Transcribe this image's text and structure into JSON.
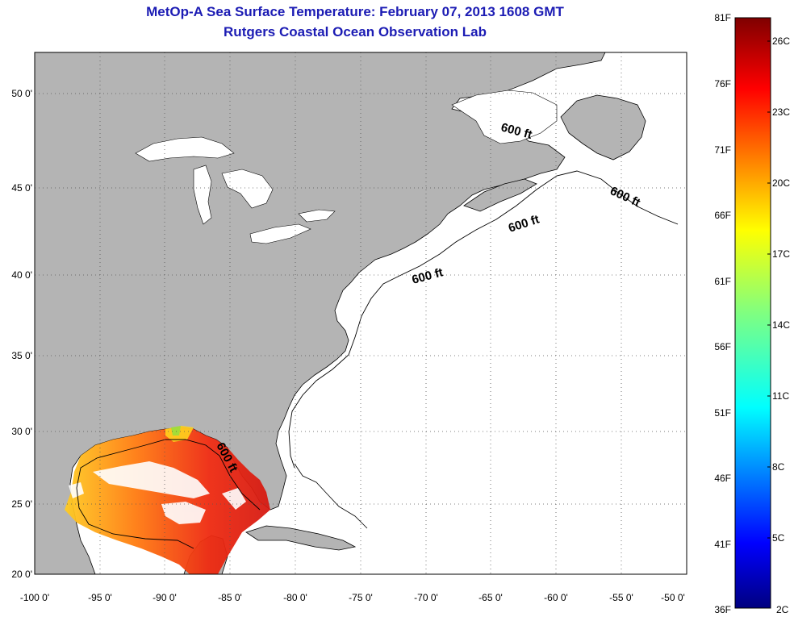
{
  "title": {
    "line1": "MetOp-A Sea Surface Temperature:  February 07, 2013 1608 GMT",
    "line2": "Rutgers Coastal Ocean Observation Lab"
  },
  "map": {
    "lon_range": [
      -100,
      -50
    ],
    "lat_range": [
      20,
      52
    ],
    "lon_ticks": [
      "-100 0'",
      "-95 0'",
      "-90 0'",
      "-85 0'",
      "-80 0'",
      "-75 0'",
      "-70 0'",
      "-65 0'",
      "-60 0'",
      "-55 0'",
      "-50 0'"
    ],
    "lat_ticks": [
      "20 0'",
      "25 0'",
      "30 0'",
      "35 0'",
      "40 0'",
      "45 0'",
      "50 0'"
    ],
    "grid": "dotted",
    "land_color": "#b4b4b4",
    "ocean_color": "#ffffff",
    "contour_labels": [
      "600 ft",
      "600 ft",
      "600 ft",
      "600 ft",
      "600 ft"
    ]
  },
  "colorbar": {
    "fahrenheit_labels": [
      "81F",
      "76F",
      "71F",
      "66F",
      "61F",
      "56F",
      "51F",
      "46F",
      "41F",
      "36F"
    ],
    "celsius_labels": [
      "26C",
      "23C",
      "20C",
      "17C",
      "14C",
      "11C",
      "8C",
      "5C",
      "2C"
    ],
    "range_f": [
      36,
      81
    ],
    "colormap": "jet"
  }
}
